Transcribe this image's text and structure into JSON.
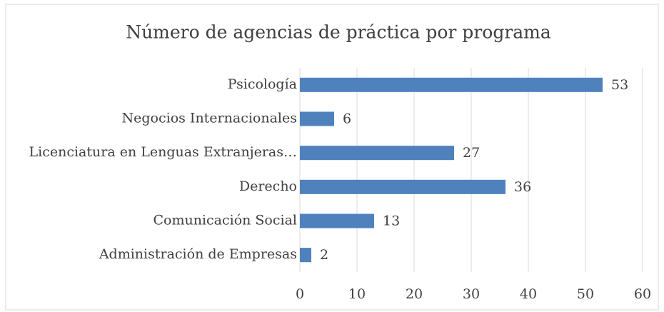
{
  "chart_data": {
    "type": "bar",
    "orientation": "horizontal",
    "title": "Número de agencias de práctica por programa",
    "categories": [
      "Psicología",
      "Negocios Internacionales",
      "Licenciatura en Lenguas Extranjeras…",
      "Derecho",
      "Comunicación Social",
      "Administración de Empresas"
    ],
    "values": [
      53,
      6,
      27,
      36,
      13,
      2
    ],
    "color": "#4f81bd",
    "xlim": [
      0,
      60
    ],
    "xticks": [
      0,
      10,
      20,
      30,
      40,
      50,
      60
    ],
    "grid": true
  }
}
